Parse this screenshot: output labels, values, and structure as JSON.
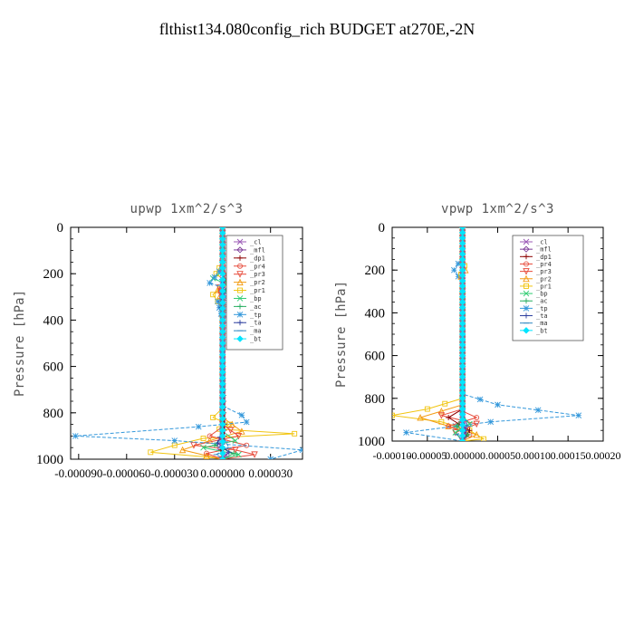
{
  "figure_title": "flthist134.080config_rich  BUDGET at270E,-2N",
  "legend_entries": [
    {
      "label": "_cl",
      "color": "#9b59b6",
      "marker": "x"
    },
    {
      "label": "_mfl",
      "color": "#7d3c98",
      "marker": "diamond"
    },
    {
      "label": "_dp1",
      "color": "#8b0000",
      "marker": "plus"
    },
    {
      "label": "_pr4",
      "color": "#e74c3c",
      "marker": "circle"
    },
    {
      "label": "_pr3",
      "color": "#e74c3c",
      "marker": "triangle-down"
    },
    {
      "label": "_pr2",
      "color": "#f39c12",
      "marker": "triangle-up"
    },
    {
      "label": "_pr1",
      "color": "#f1c40f",
      "marker": "square"
    },
    {
      "label": "_bp",
      "color": "#2ecc71",
      "marker": "x"
    },
    {
      "label": "_ac",
      "color": "#27ae60",
      "marker": "plus"
    },
    {
      "label": "_tp",
      "color": "#3498db",
      "marker": "star"
    },
    {
      "label": "_ta",
      "color": "#2c3e9e",
      "marker": "plus"
    },
    {
      "label": "_ma",
      "color": "#2e86c1",
      "marker": "dash"
    },
    {
      "label": "_bt",
      "color": "#00e5ff",
      "marker": "diamond-filled"
    }
  ],
  "chart_data": [
    {
      "type": "line",
      "title": "upwp   1xm^2/s^3",
      "xlabel": "",
      "ylabel": "Pressure [hPa]",
      "xlim": [
        -9.5e-05,
        5e-05
      ],
      "ylim": [
        1000,
        0
      ],
      "xticks": [
        -9e-05,
        -6e-05,
        -3e-05,
        0.0,
        3e-05
      ],
      "xtick_labels": [
        "-0.000090",
        "-0.000060",
        "-0.000030",
        "0.000000",
        "0.000030"
      ],
      "yticks": [
        0,
        200,
        400,
        600,
        800,
        1000
      ],
      "ytick_labels": [
        "0",
        "200",
        "400",
        "600",
        "800",
        "1000"
      ],
      "legend_position": "top-right",
      "series": [
        {
          "name": "_pr1",
          "color": "#f1c40f",
          "x": [
            0,
            0,
            -4e-06,
            3e-06,
            -6e-06,
            0,
            0,
            -6e-06,
            4e-06,
            -2e-06,
            4.5e-05,
            -1.2e-05,
            -3e-05,
            -4.5e-05,
            -1e-05,
            0
          ],
          "y": [
            0,
            150,
            200,
            240,
            290,
            350,
            780,
            820,
            850,
            870,
            890,
            910,
            940,
            970,
            990,
            1000
          ]
        },
        {
          "name": "_pr2",
          "color": "#f39c12",
          "x": [
            0,
            0,
            3e-06,
            -3e-06,
            0,
            0,
            1.2e-05,
            -8e-06,
            -2.5e-05,
            -1e-05,
            0
          ],
          "y": [
            0,
            180,
            220,
            270,
            320,
            820,
            880,
            920,
            960,
            985,
            1000
          ]
        },
        {
          "name": "_pr3",
          "color": "#e74c3c",
          "x": [
            0,
            0,
            3e-06,
            -2e-06,
            0,
            0,
            1e-05,
            -1.8e-05,
            8e-06,
            2e-05,
            0
          ],
          "y": [
            0,
            180,
            210,
            260,
            320,
            850,
            900,
            940,
            960,
            980,
            1000
          ]
        },
        {
          "name": "_pr4",
          "color": "#e74c3c",
          "x": [
            0,
            0,
            2e-06,
            -1e-06,
            0,
            0,
            -8e-06,
            1.5e-05,
            -1e-05,
            0
          ],
          "y": [
            0,
            190,
            230,
            270,
            330,
            860,
            900,
            940,
            975,
            1000
          ]
        },
        {
          "name": "_bp",
          "color": "#2ecc71",
          "x": [
            0,
            0,
            -6e-06,
            4e-06,
            0,
            0,
            8e-06,
            -1.2e-05,
            1e-05,
            0
          ],
          "y": [
            0,
            190,
            220,
            250,
            300,
            880,
            920,
            950,
            980,
            1000
          ]
        },
        {
          "name": "_ac",
          "color": "#27ae60",
          "x": [
            0,
            0,
            3e-06,
            0,
            0,
            -5e-06,
            7e-06,
            0
          ],
          "y": [
            0,
            200,
            250,
            300,
            900,
            940,
            975,
            1000
          ]
        },
        {
          "name": "_tp",
          "color": "#3498db",
          "x": [
            0,
            0,
            -2e-06,
            -8e-06,
            4e-06,
            -3e-06,
            0,
            0,
            1.2e-05,
            1.5e-05,
            -1.5e-05,
            -9.2e-05,
            -3e-05,
            5e-05,
            3e-05
          ],
          "y": [
            0,
            150,
            190,
            240,
            270,
            320,
            400,
            770,
            810,
            840,
            860,
            900,
            920,
            960,
            1000
          ]
        },
        {
          "name": "_ma",
          "color": "#2e86c1",
          "x": [
            0,
            0,
            -1e-06,
            1e-06,
            0,
            0,
            4e-06,
            -4e-06,
            0
          ],
          "y": [
            0,
            200,
            250,
            300,
            350,
            900,
            950,
            980,
            1000
          ]
        },
        {
          "name": "_ta",
          "color": "#2c3e9e",
          "x": [
            0,
            0,
            1e-06,
            -1e-06,
            0,
            0,
            -3e-06,
            4e-06,
            0
          ],
          "y": [
            0,
            200,
            250,
            320,
            400,
            880,
            930,
            970,
            1000
          ]
        },
        {
          "name": "_cl",
          "color": "#9b59b6",
          "x": [
            0,
            0,
            1e-06,
            0,
            0,
            -2e-06,
            2e-06,
            0
          ],
          "y": [
            0,
            300,
            350,
            450,
            900,
            950,
            980,
            1000
          ]
        },
        {
          "name": "_dp1",
          "color": "#8b0000",
          "x": [
            0,
            0,
            1e-06,
            -1e-06,
            0
          ],
          "y": [
            0,
            500,
            900,
            960,
            1000
          ]
        },
        {
          "name": "_mfl",
          "color": "#7d3c98",
          "x": [
            0,
            0,
            0
          ],
          "y": [
            0,
            500,
            1000
          ]
        },
        {
          "name": "_bt",
          "color": "#00e5ff",
          "x": [
            0,
            0
          ],
          "y": [
            0,
            1000
          ]
        }
      ]
    },
    {
      "type": "line",
      "title": "vpwp   1xm^2/s^3",
      "xlabel": "",
      "ylabel": "Pressure [hPa]",
      "xlim": [
        -0.0001,
        0.0002
      ],
      "ylim": [
        1000,
        0
      ],
      "xticks": [
        -0.0001,
        -5e-05,
        0.0,
        5e-05,
        0.0001,
        0.00015,
        0.0002
      ],
      "xtick_labels": [
        "-0.00010",
        "-0.00005",
        "0.00000",
        "0.00005",
        "0.00010",
        "0.00015",
        "0.00020"
      ],
      "yticks": [
        0,
        200,
        400,
        600,
        800,
        1000
      ],
      "ytick_labels": [
        "0",
        "200",
        "400",
        "600",
        "800",
        "1000"
      ],
      "legend_position": "top-right",
      "series": [
        {
          "name": "_tp",
          "color": "#3498db",
          "x": [
            0,
            0,
            -6e-06,
            -1.2e-05,
            -6e-06,
            0,
            0,
            5e-05,
            0.000165,
            4e-05,
            -1e-05,
            -8e-05,
            0
          ],
          "y": [
            0,
            140,
            170,
            200,
            230,
            260,
            780,
            830,
            880,
            910,
            930,
            960,
            1000
          ]
        },
        {
          "name": "_pr1",
          "color": "#f1c40f",
          "x": [
            0,
            0,
            3e-06,
            -2e-06,
            0,
            0,
            -5e-05,
            -0.0001,
            -3e-05,
            1e-05,
            3e-05,
            0
          ],
          "y": [
            0,
            150,
            180,
            220,
            260,
            800,
            850,
            880,
            910,
            950,
            990,
            1000
          ]
        },
        {
          "name": "_pr2",
          "color": "#f39c12",
          "x": [
            0,
            0,
            4e-06,
            -2e-06,
            0,
            0,
            -3e-05,
            -6e-05,
            -2e-05,
            2e-05,
            0
          ],
          "y": [
            0,
            160,
            200,
            230,
            270,
            830,
            860,
            890,
            930,
            970,
            1000
          ]
        },
        {
          "name": "_pr3",
          "color": "#e74c3c",
          "x": [
            0,
            0,
            0,
            -3e-05,
            2e-05,
            -1e-05,
            0
          ],
          "y": [
            0,
            300,
            850,
            880,
            920,
            960,
            1000
          ]
        },
        {
          "name": "_pr4",
          "color": "#e74c3c",
          "x": [
            0,
            0,
            0,
            2e-05,
            -2e-05,
            1e-05,
            0
          ],
          "y": [
            0,
            300,
            860,
            890,
            930,
            970,
            1000
          ]
        },
        {
          "name": "_dp1",
          "color": "#8b0000",
          "x": [
            0,
            0,
            -2e-05,
            1e-05,
            0
          ],
          "y": [
            0,
            850,
            890,
            950,
            1000
          ]
        },
        {
          "name": "_bp",
          "color": "#2ecc71",
          "x": [
            0,
            0,
            1e-05,
            -1e-05,
            0
          ],
          "y": [
            0,
            880,
            920,
            960,
            1000
          ]
        },
        {
          "name": "_ac",
          "color": "#27ae60",
          "x": [
            0,
            0,
            -8e-06,
            8e-06,
            0
          ],
          "y": [
            0,
            890,
            930,
            970,
            1000
          ]
        },
        {
          "name": "_ma",
          "color": "#2e86c1",
          "x": [
            0,
            0,
            8e-06,
            -8e-06,
            0
          ],
          "y": [
            0,
            880,
            930,
            970,
            1000
          ]
        },
        {
          "name": "_ta",
          "color": "#2c3e9e",
          "x": [
            0,
            0,
            5e-06,
            0
          ],
          "y": [
            0,
            900,
            950,
            1000
          ]
        },
        {
          "name": "_cl",
          "color": "#9b59b6",
          "x": [
            0,
            0,
            3e-06,
            0
          ],
          "y": [
            0,
            900,
            950,
            1000
          ]
        },
        {
          "name": "_mfl",
          "color": "#7d3c98",
          "x": [
            0,
            0,
            0
          ],
          "y": [
            0,
            500,
            1000
          ]
        },
        {
          "name": "_bt",
          "color": "#00e5ff",
          "x": [
            0,
            0
          ],
          "y": [
            0,
            1000
          ]
        }
      ]
    }
  ]
}
